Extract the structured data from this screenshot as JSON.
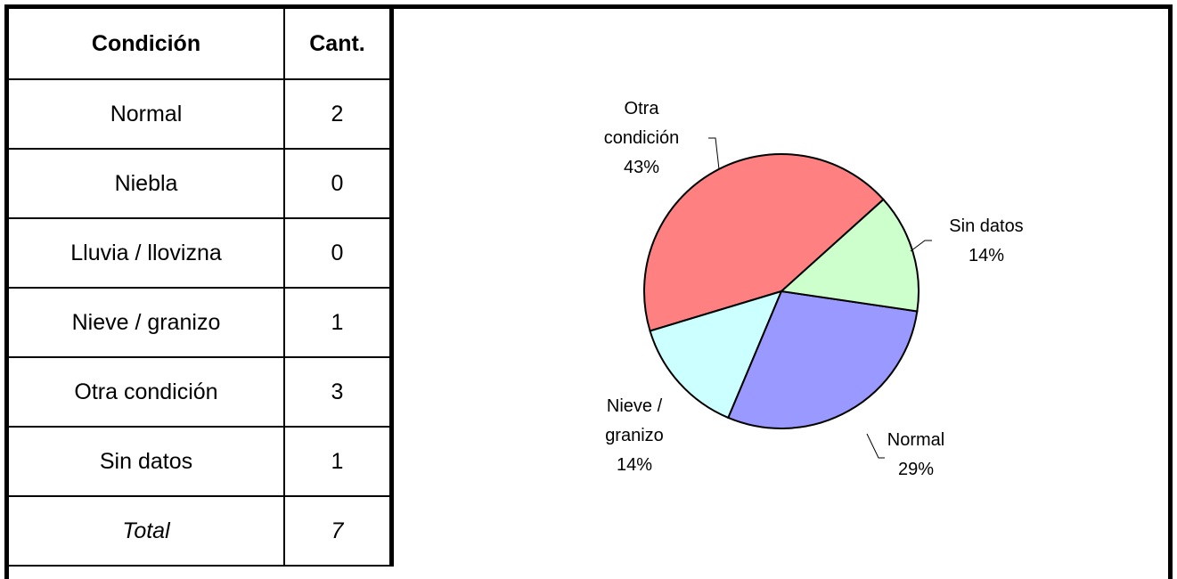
{
  "table": {
    "header": [
      "Condición",
      "Cant."
    ],
    "rows": [
      [
        "Normal",
        2
      ],
      [
        "Niebla",
        0
      ],
      [
        "Lluvia / llovizna",
        0
      ],
      [
        "Nieve / granizo",
        1
      ],
      [
        "Otra condición",
        3
      ],
      [
        "Sin datos",
        1
      ],
      [
        "Total",
        7
      ]
    ]
  },
  "chart_data": {
    "type": "pie",
    "categories": [
      "Sin datos",
      "Normal",
      "Nieve / granizo",
      "Otra condición"
    ],
    "values": [
      14,
      29,
      14,
      43
    ],
    "value_labels": [
      "14%",
      "29%",
      "14%",
      "43%"
    ],
    "colors": [
      "#ccffcc",
      "#9999ff",
      "#ccffff",
      "#ff8080"
    ]
  }
}
